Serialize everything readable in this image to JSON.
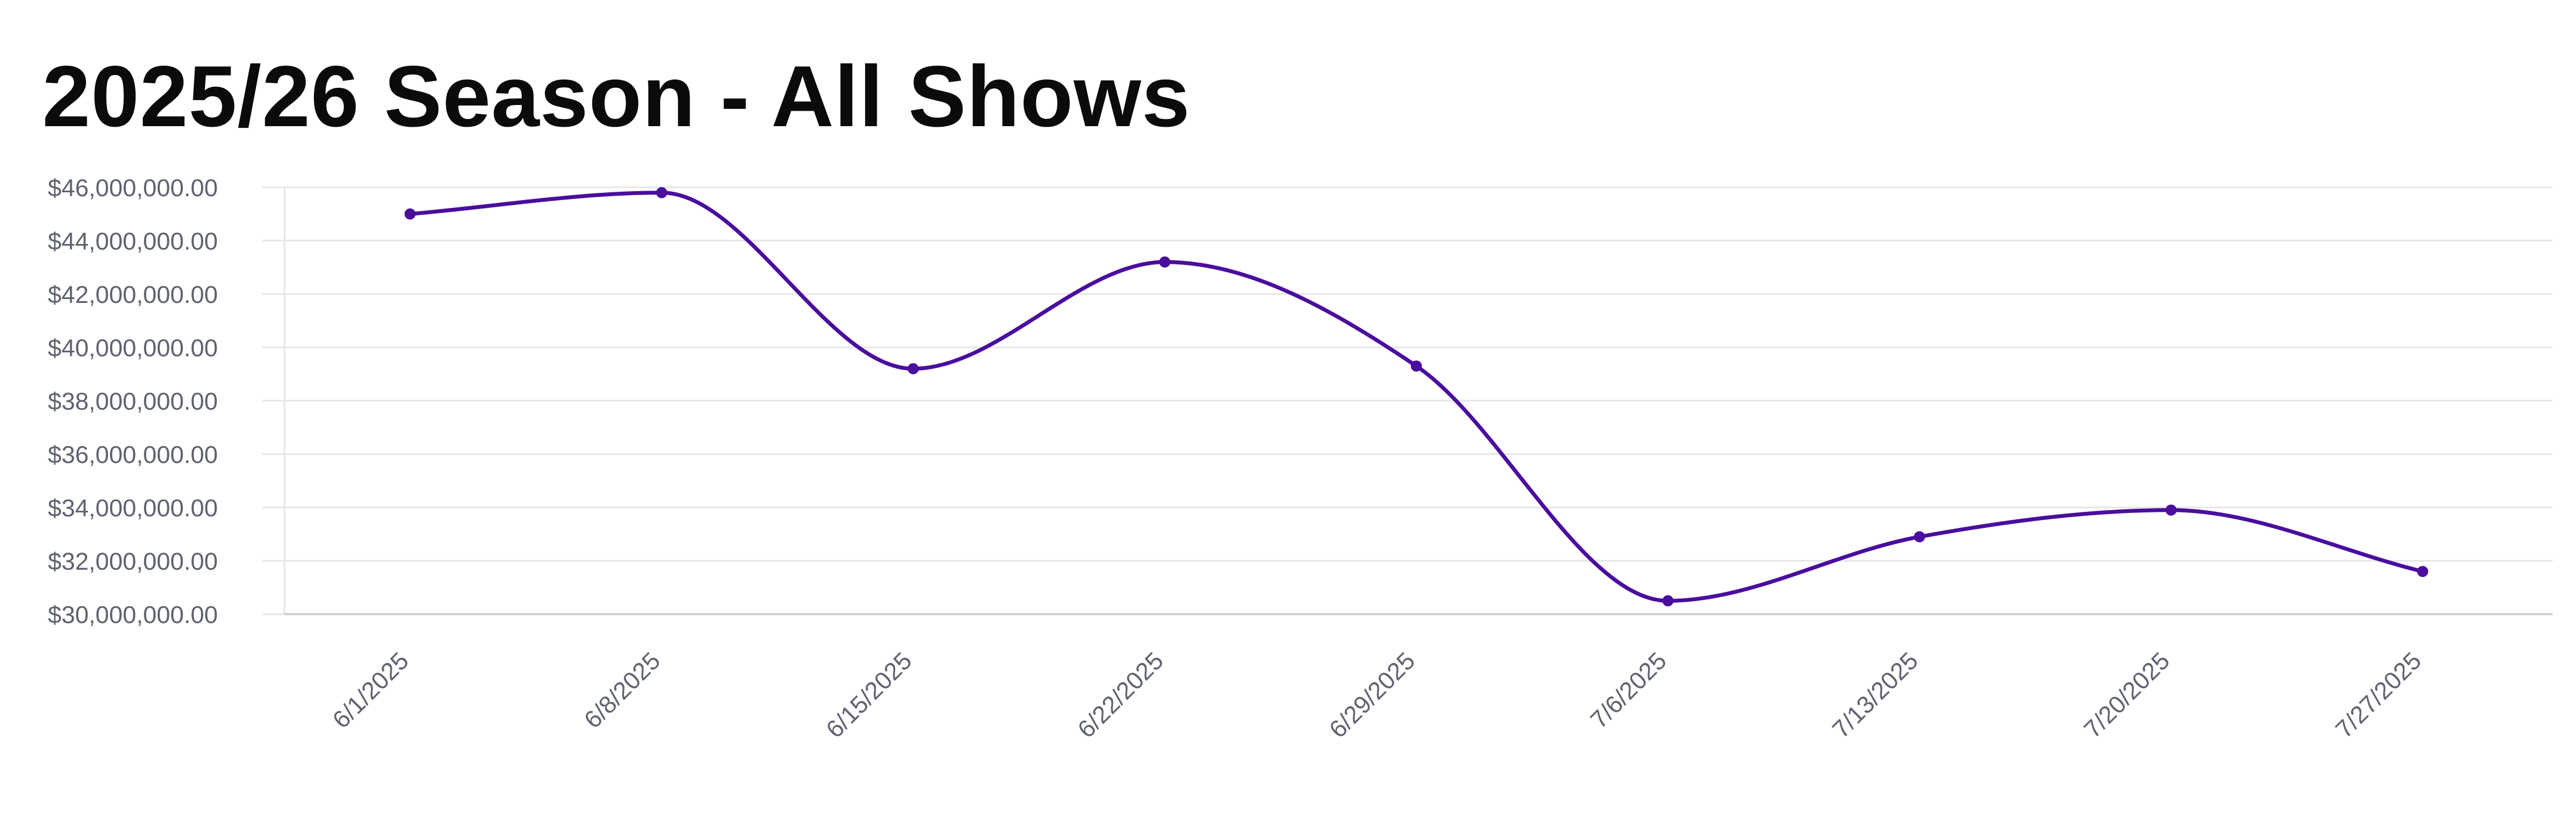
{
  "page": {
    "title": "2025/26 Season - All Shows"
  },
  "colors": {
    "line": "#4a0d9e",
    "grid": "#e6e6e8",
    "tick_text": "#5f6270",
    "title": "#0b0b0b"
  },
  "chart_data": {
    "type": "line",
    "title": "2025/26 Season - All Shows",
    "xlabel": "",
    "ylabel": "",
    "categories": [
      "6/1/2025",
      "6/8/2025",
      "6/15/2025",
      "6/22/2025",
      "6/29/2025",
      "7/6/2025",
      "7/13/2025",
      "7/20/2025",
      "7/27/2025"
    ],
    "series": [
      {
        "values": [
          45000000,
          45800000,
          39200000,
          43200000,
          39300000,
          30500000,
          32900000,
          33900000,
          31600000
        ]
      }
    ],
    "ylim": [
      30000000,
      46000000
    ],
    "yticks": [
      30000000,
      32000000,
      34000000,
      36000000,
      38000000,
      40000000,
      42000000,
      44000000,
      46000000
    ],
    "ytick_labels": [
      "$30,000,000.00",
      "$32,000,000.00",
      "$34,000,000.00",
      "$36,000,000.00",
      "$38,000,000.00",
      "$40,000,000.00",
      "$42,000,000.00",
      "$44,000,000.00",
      "$46,000,000.00"
    ],
    "grid": true,
    "legend": "none",
    "curve": "smooth"
  }
}
